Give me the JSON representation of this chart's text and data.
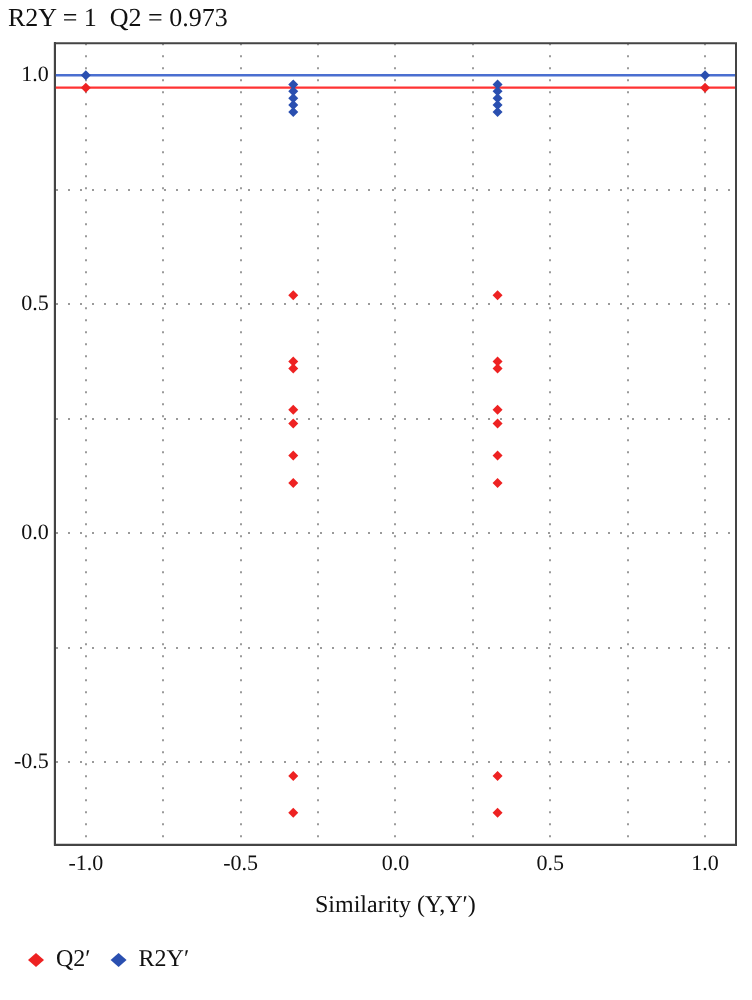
{
  "chart_data": {
    "type": "scatter",
    "title": "R2Y = 1  Q2 = 0.973",
    "xlabel": "Similarity (Y,Y′)",
    "xlim": [
      -1.1,
      1.1
    ],
    "xticks": [
      {
        "value": -1,
        "label": "-1.0"
      },
      {
        "value": -0.75,
        "label": null
      },
      -0.5,
      {
        "value": -0.25,
        "label": null
      },
      {
        "value": 0,
        "label": "0.0"
      },
      {
        "value": 0.25,
        "label": null
      },
      0.5,
      {
        "value": 0.75,
        "label": null
      },
      {
        "value": 1,
        "label": "1.0"
      }
    ],
    "ylim": [
      -0.68,
      1.07
    ],
    "yticks": [
      -0.5,
      {
        "value": -0.25,
        "label": null
      },
      {
        "value": 0,
        "label": "0.0"
      },
      {
        "value": 0.25,
        "label": null
      },
      0.5,
      {
        "value": 0.75,
        "label": null
      },
      {
        "value": 1,
        "label": "1.0"
      }
    ],
    "grid": true,
    "legend": "bottom",
    "marker": "diamond",
    "series": [
      {
        "name": "Q2′",
        "color": "#ee2222",
        "x": [
          -1,
          -0.33,
          -0.33,
          -0.33,
          -0.33,
          -0.33,
          -0.33,
          -0.33,
          -0.33,
          -0.33,
          0.33,
          0.33,
          0.33,
          0.33,
          0.33,
          0.33,
          0.33,
          0.33,
          0.33,
          1
        ],
        "values": [
          0.973,
          0.52,
          0.375,
          0.36,
          0.27,
          0.24,
          0.17,
          0.11,
          -0.53,
          -0.61,
          0.52,
          0.375,
          0.36,
          0.27,
          0.24,
          0.17,
          0.11,
          -0.53,
          -0.61,
          0.973
        ]
      },
      {
        "name": "R2Y′",
        "color": "#2a4fb0",
        "x": [
          -1,
          -0.33,
          -0.33,
          -0.33,
          -0.33,
          -0.33,
          0.33,
          0.33,
          0.33,
          0.33,
          0.33,
          1
        ],
        "values": [
          1.0,
          0.98,
          0.965,
          0.95,
          0.935,
          0.92,
          0.98,
          0.965,
          0.95,
          0.935,
          0.92,
          1.0
        ]
      },
      {
        "type": "line",
        "marker": "none",
        "color": "#ff3333",
        "x": [
          -1.1,
          1.1
        ],
        "values": [
          0.973,
          0.973
        ]
      },
      {
        "type": "line",
        "marker": "none",
        "color": "#4a6fd0",
        "x": [
          -1.1,
          1.1
        ],
        "values": [
          1.0,
          1.0
        ]
      }
    ]
  }
}
